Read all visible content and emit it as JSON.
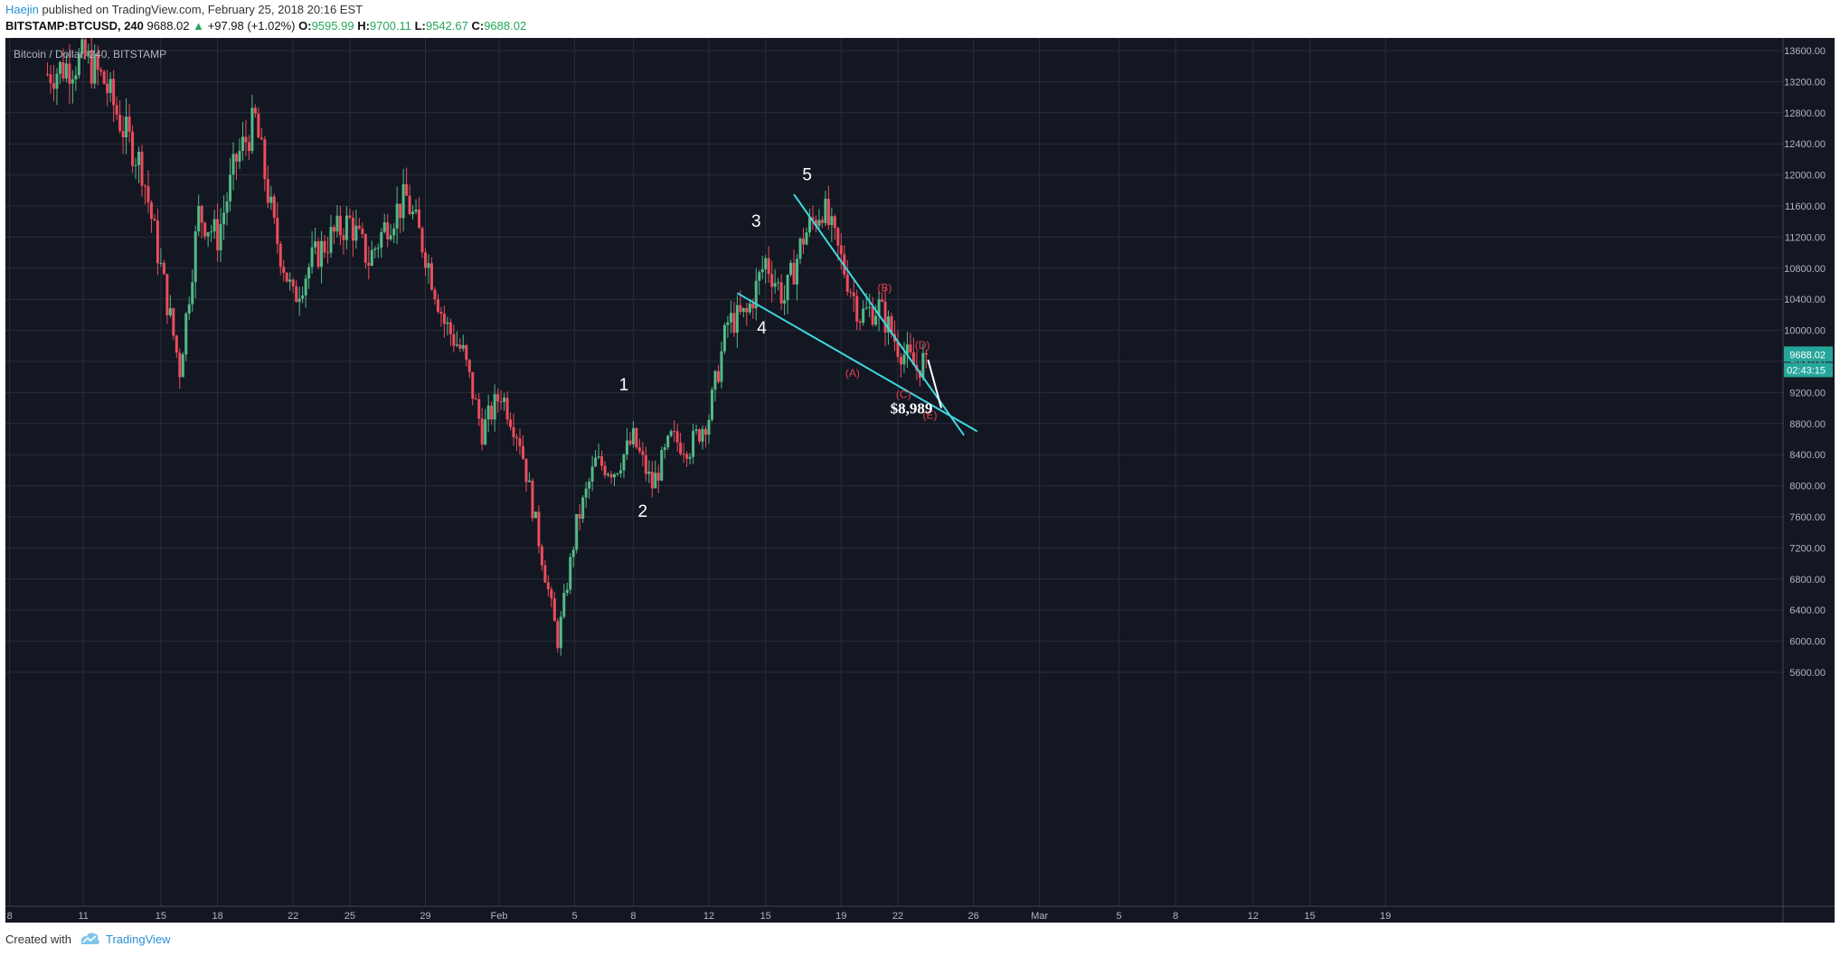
{
  "header": {
    "author": "Haejin",
    "published_text": "published on TradingView.com, February 25, 2018 20:16 EST",
    "symbol": "BITSTAMP:BTCUSD, 240",
    "last": "9688.02",
    "change": "+97.98 (+1.02%)",
    "o_label": "O:",
    "o_value": "9595.99",
    "h_label": "H:",
    "h_value": "9700.11",
    "l_label": "L:",
    "l_value": "9542.67",
    "c_label": "C:",
    "c_value": "9688.02"
  },
  "footer": {
    "created_with": "Created with",
    "brand": "TradingView"
  },
  "chart_data": {
    "type": "candlestick",
    "title": "Bitcoin / Dollar, 240, BITSTAMP",
    "x_ticks": [
      "8",
      "11",
      "15",
      "18",
      "22",
      "25",
      "29",
      "Feb",
      "5",
      "8",
      "12",
      "15",
      "19",
      "22",
      "26",
      "Mar",
      "5",
      "8",
      "12",
      "15",
      "19"
    ],
    "y_ticks": [
      "13600.00",
      "13200.00",
      "12800.00",
      "12400.00",
      "12000.00",
      "11600.00",
      "11200.00",
      "10800.00",
      "10400.00",
      "10000.00",
      "9600.00",
      "9200.00",
      "8800.00",
      "8400.00",
      "8000.00",
      "7600.00",
      "7200.00",
      "6800.00",
      "6400.00",
      "6000.00",
      "5600.00"
    ],
    "ylim": [
      5200,
      13950
    ],
    "last_price": "9688.02",
    "countdown": "02:43:15",
    "price_path": [
      {
        "day": 1,
        "price": 13300
      },
      {
        "day": 3,
        "price": 13500
      },
      {
        "day": 4,
        "price": 13200
      },
      {
        "day": 5,
        "price": 12600
      },
      {
        "day": 6,
        "price": 12100
      },
      {
        "day": 7,
        "price": 10800
      },
      {
        "day": 8,
        "price": 9500
      },
      {
        "day": 9,
        "price": 11500
      },
      {
        "day": 10,
        "price": 11200
      },
      {
        "day": 11,
        "price": 12200
      },
      {
        "day": 12,
        "price": 12700
      },
      {
        "day": 13,
        "price": 11300
      },
      {
        "day": 14,
        "price": 10400
      },
      {
        "day": 15,
        "price": 10900
      },
      {
        "day": 16,
        "price": 11200
      },
      {
        "day": 17,
        "price": 11400
      },
      {
        "day": 18,
        "price": 10900
      },
      {
        "day": 19,
        "price": 11400
      },
      {
        "day": 20,
        "price": 11700
      },
      {
        "day": 21,
        "price": 11000
      },
      {
        "day": 22,
        "price": 10100
      },
      {
        "day": 23,
        "price": 9700
      },
      {
        "day": 24,
        "price": 8700
      },
      {
        "day": 25,
        "price": 9200
      },
      {
        "day": 26,
        "price": 8600
      },
      {
        "day": 27,
        "price": 7300
      },
      {
        "day": 28,
        "price": 6000
      },
      {
        "day": 29,
        "price": 7500
      },
      {
        "day": 30,
        "price": 8300
      },
      {
        "day": 31,
        "price": 8200
      },
      {
        "day": 32,
        "price": 8600
      },
      {
        "day": 33,
        "price": 8000
      },
      {
        "day": 34,
        "price": 8600
      },
      {
        "day": 35,
        "price": 8500
      },
      {
        "day": 36,
        "price": 8900
      },
      {
        "day": 37,
        "price": 10100
      },
      {
        "day": 38,
        "price": 10200
      },
      {
        "day": 39,
        "price": 10900
      },
      {
        "day": 40,
        "price": 10400
      },
      {
        "day": 41,
        "price": 11200
      },
      {
        "day": 42,
        "price": 11600
      },
      {
        "day": 43,
        "price": 10900
      },
      {
        "day": 44,
        "price": 10200
      },
      {
        "day": 45,
        "price": 10300
      },
      {
        "day": 46,
        "price": 9800
      },
      {
        "day": 47,
        "price": 9500
      },
      {
        "day": 47.6,
        "price": 9688
      }
    ],
    "trendlines": [
      {
        "from": {
          "day": 40.5,
          "price": 11750
        },
        "to": {
          "day": 49.5,
          "price": 8650
        },
        "color": "#3fd8e0"
      },
      {
        "from": {
          "day": 37.5,
          "price": 10480
        },
        "to": {
          "day": 50.2,
          "price": 8700
        },
        "color": "#3fd8e0"
      },
      {
        "from": {
          "day": 47.6,
          "price": 9620
        },
        "to": {
          "day": 48.3,
          "price": 9000
        },
        "color": "#ffffff"
      }
    ],
    "wave_labels": [
      {
        "text": "1",
        "day": 31.5,
        "price": 9230
      },
      {
        "text": "2",
        "day": 32.5,
        "price": 7600
      },
      {
        "text": "3",
        "day": 38.5,
        "price": 11330
      },
      {
        "text": "4",
        "day": 38.8,
        "price": 9960
      },
      {
        "text": "5",
        "day": 41.2,
        "price": 11930
      }
    ],
    "correction_labels": [
      {
        "text": "(A)",
        "day": 43.6,
        "price": 9400
      },
      {
        "text": "(B)",
        "day": 45.3,
        "price": 10500
      },
      {
        "text": "(C)",
        "day": 46.3,
        "price": 9130
      },
      {
        "text": "(D)",
        "day": 47.3,
        "price": 9760
      },
      {
        "text": "(E)",
        "day": 47.7,
        "price": 8860
      }
    ],
    "price_annotation": {
      "text": "$8,989",
      "day": 45.6,
      "price": 8930
    },
    "colors": {
      "background": "#131722",
      "up": "#53b987",
      "down": "#eb4d5c",
      "grid": "#2a2e39",
      "axis_text": "#b2b5be",
      "trend": "#3fd8e0",
      "wave_label": "#ffffff",
      "correction_label": "#e2424f",
      "price_tag": "#26a69a"
    }
  }
}
